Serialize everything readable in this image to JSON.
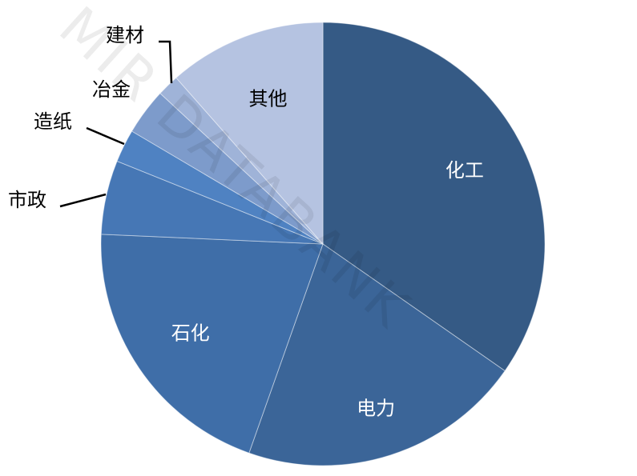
{
  "chart_data": {
    "type": "pie",
    "start_angle": "top, clockwise",
    "slices": [
      {
        "label": "化工",
        "value": 34.7,
        "color": "#355a85",
        "label_color": "#ffffff"
      },
      {
        "label": "电力",
        "value": 20.7,
        "color": "#3b6598",
        "label_color": "#ffffff"
      },
      {
        "label": "石化",
        "value": 20.3,
        "color": "#3f6ea8",
        "label_color": "#ffffff"
      },
      {
        "label": "市政",
        "value": 5.4,
        "color": "#4677b5",
        "label_color": "#000000"
      },
      {
        "label": "造纸",
        "value": 2.4,
        "color": "#4f82c2",
        "label_color": "#000000"
      },
      {
        "label": "冶金",
        "value": 3.4,
        "color": "#7d9bcb",
        "label_color": "#000000"
      },
      {
        "label": "建材",
        "value": 1.6,
        "color": "#9fb3d8",
        "label_color": "#000000"
      },
      {
        "label": "其他",
        "value": 11.5,
        "color": "#b5c3e1",
        "label_color": "#000000"
      }
    ],
    "legend": "none"
  },
  "watermark": "MIR DATABANK"
}
